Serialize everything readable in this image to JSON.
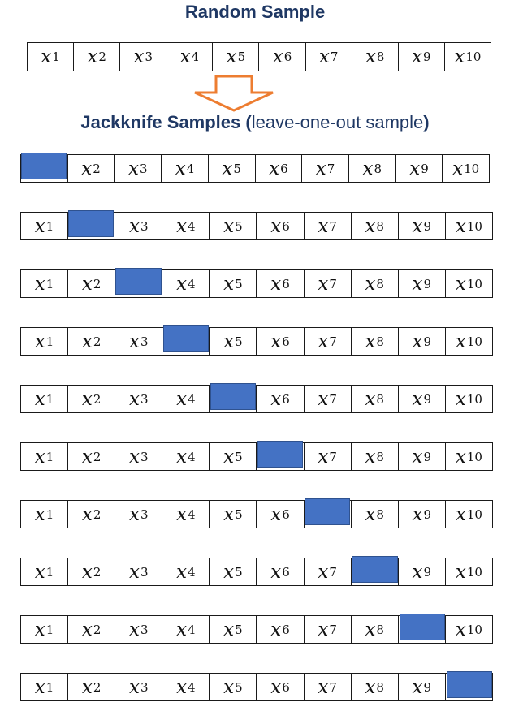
{
  "title": "Random Sample",
  "subtitle": {
    "bold_part": "Jackknife Samples (",
    "normal_part": "leave-one-out sample",
    "bold_close": ")"
  },
  "variable_symbol": "x",
  "indices": [
    "1",
    "2",
    "3",
    "4",
    "5",
    "6",
    "7",
    "8",
    "9",
    "10"
  ],
  "colors": {
    "title": "#1f3864",
    "mask": "#4472c4",
    "arrow": "#ed7d31",
    "border": "#1a1a1a"
  },
  "jackknife_left_out": [
    1,
    2,
    3,
    4,
    5,
    6,
    7,
    8,
    9,
    10
  ]
}
